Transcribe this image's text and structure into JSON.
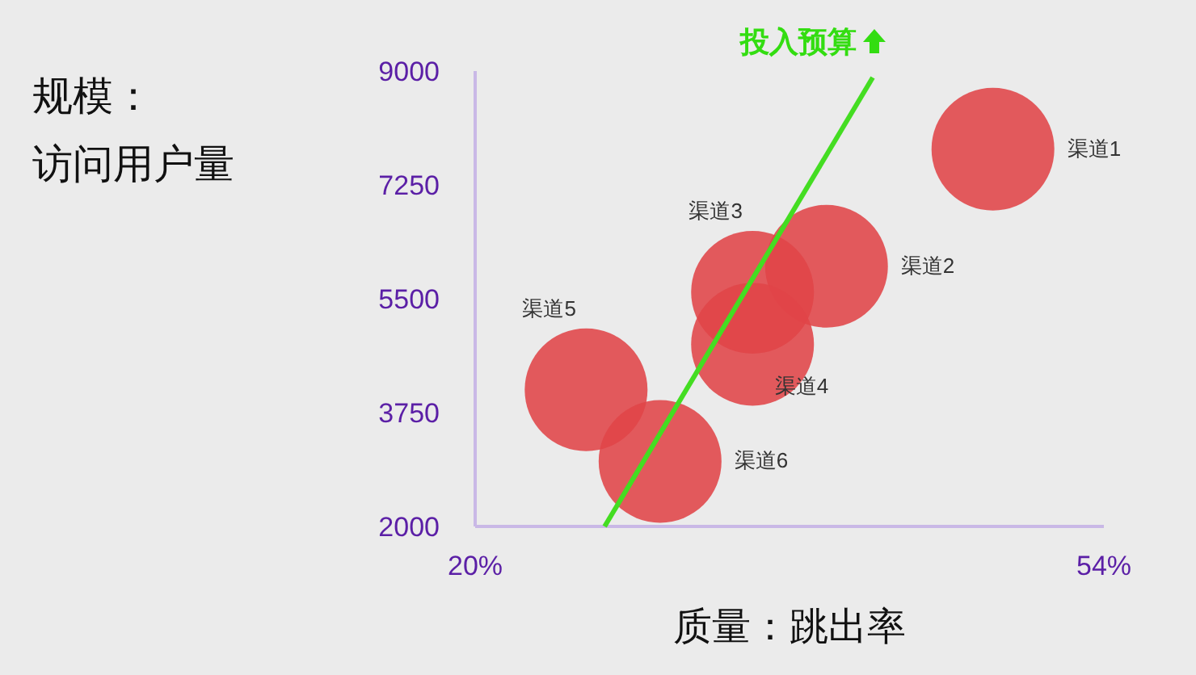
{
  "chart_data": {
    "type": "bubble",
    "xlabel": "质量：跳出率",
    "ylabel": "规模：访问用户量",
    "xlim": [
      20,
      54
    ],
    "xticks": [
      {
        "value": 20,
        "label": "20%"
      },
      {
        "value": 54,
        "label": "54%"
      }
    ],
    "ylim": [
      2000,
      9000
    ],
    "yticks": [
      2000,
      3750,
      5500,
      7250,
      9000
    ],
    "grid": false,
    "annotations": [
      "投入预算"
    ],
    "series": [
      {
        "name": "渠道1",
        "color": "#e04448",
        "x": [
          48
        ],
        "values": [
          7800
        ],
        "sizes": [
          1
        ]
      },
      {
        "name": "渠道2",
        "color": "#e04448",
        "x": [
          39
        ],
        "values": [
          6000
        ],
        "sizes": [
          1
        ]
      },
      {
        "name": "渠道3",
        "color": "#e04448",
        "x": [
          35
        ],
        "values": [
          5600
        ],
        "sizes": [
          1
        ]
      },
      {
        "name": "渠道4",
        "color": "#e04448",
        "x": [
          35
        ],
        "values": [
          4800
        ],
        "sizes": [
          1
        ]
      },
      {
        "name": "渠道5",
        "color": "#e04448",
        "x": [
          26
        ],
        "values": [
          4100
        ],
        "sizes": [
          1
        ]
      },
      {
        "name": "渠道6",
        "color": "#e04448",
        "x": [
          30
        ],
        "values": [
          3000
        ],
        "sizes": [
          1
        ]
      },
      {
        "type": "line",
        "color": "#44dd22",
        "x": [
          27,
          41.5
        ],
        "values": [
          2000,
          8900
        ]
      }
    ]
  }
}
